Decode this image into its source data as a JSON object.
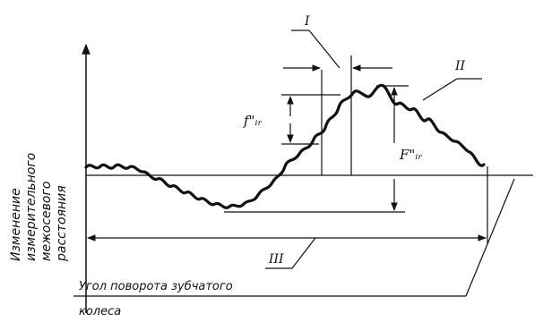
{
  "y_axis_label_lines": [
    "Изменение",
    "измерительного",
    "межосевого",
    "расстояния"
  ],
  "x_axis_caption_line1": "Угол поворота зубчатого",
  "x_axis_caption_line2": "колеса",
  "marks": {
    "tooth_to_tooth": "f\"ᵢᵣ",
    "total": "F\"ᵢᵣ"
  },
  "roman_labels": {
    "one": "I",
    "two": "II",
    "three": "III"
  }
}
